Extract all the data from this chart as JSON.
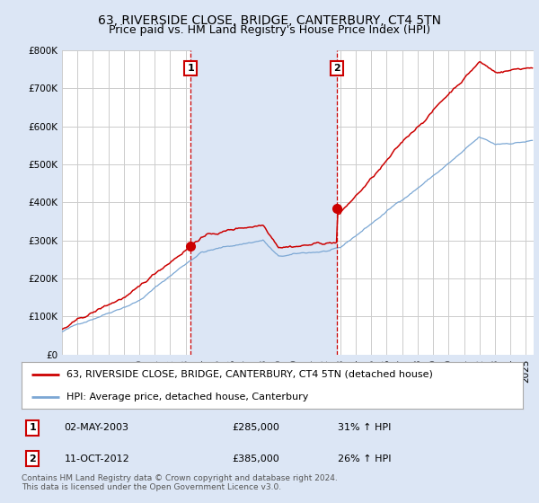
{
  "title": "63, RIVERSIDE CLOSE, BRIDGE, CANTERBURY, CT4 5TN",
  "subtitle": "Price paid vs. HM Land Registry's House Price Index (HPI)",
  "ylim": [
    0,
    800000
  ],
  "yticks": [
    0,
    100000,
    200000,
    300000,
    400000,
    500000,
    600000,
    700000,
    800000
  ],
  "ytick_labels": [
    "£0",
    "£100K",
    "£200K",
    "£300K",
    "£400K",
    "£500K",
    "£600K",
    "£700K",
    "£800K"
  ],
  "xlim_start": 1995.0,
  "xlim_end": 2025.5,
  "background_color": "#dce6f5",
  "plot_bg_color": "#ffffff",
  "shade_color": "#dce6f5",
  "grid_color": "#cccccc",
  "red_line_color": "#cc0000",
  "blue_line_color": "#7ba7d4",
  "sale1_year": 2003.33,
  "sale1_price": 285000,
  "sale2_year": 2012.78,
  "sale2_price": 385000,
  "legend_red_label": "63, RIVERSIDE CLOSE, BRIDGE, CANTERBURY, CT4 5TN (detached house)",
  "legend_blue_label": "HPI: Average price, detached house, Canterbury",
  "table_row1": [
    "1",
    "02-MAY-2003",
    "£285,000",
    "31% ↑ HPI"
  ],
  "table_row2": [
    "2",
    "11-OCT-2012",
    "£385,000",
    "26% ↑ HPI"
  ],
  "footer": "Contains HM Land Registry data © Crown copyright and database right 2024.\nThis data is licensed under the Open Government Licence v3.0.",
  "title_fontsize": 10,
  "subtitle_fontsize": 9,
  "tick_fontsize": 7.5,
  "legend_fontsize": 8,
  "table_fontsize": 8,
  "footer_fontsize": 6.5
}
